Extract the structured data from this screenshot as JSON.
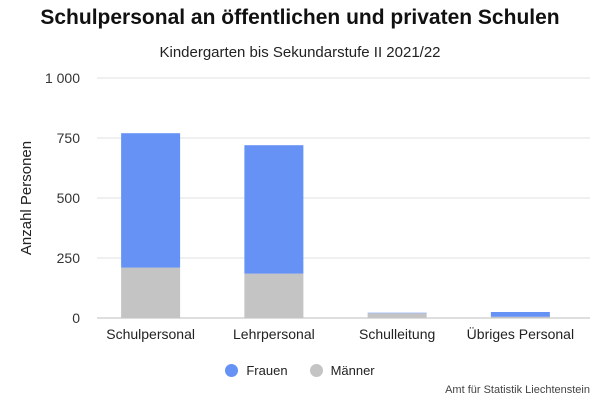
{
  "chart_data": {
    "type": "bar",
    "stacked": true,
    "title": "Schulpersonal an öffentlichen und privaten Schulen",
    "subtitle": "Kindergarten bis Sekundarstufe II 2021/22",
    "ylabel": "Anzahl Personen",
    "xlabel": "",
    "ylim": [
      0,
      1000
    ],
    "yticks": [
      0,
      250,
      500,
      750,
      1000
    ],
    "ytick_labels": [
      "0",
      "250",
      "500",
      "750",
      "1 000"
    ],
    "categories": [
      "Schulpersonal",
      "Lehrpersonal",
      "Schulleitung",
      "Übriges Personal"
    ],
    "series": [
      {
        "name": "Männer",
        "color": "#c4c4c4",
        "values": [
          210,
          185,
          20,
          5
        ]
      },
      {
        "name": "Frauen",
        "color": "#6692f5",
        "values": [
          560,
          535,
          2,
          20
        ]
      }
    ],
    "legend_position": "bottom-center",
    "grid": true
  },
  "source": "Amt für Statistik Liechtenstein",
  "legend": [
    {
      "label": "Frauen",
      "color": "#6692f5"
    },
    {
      "label": "Männer",
      "color": "#c4c4c4"
    }
  ]
}
